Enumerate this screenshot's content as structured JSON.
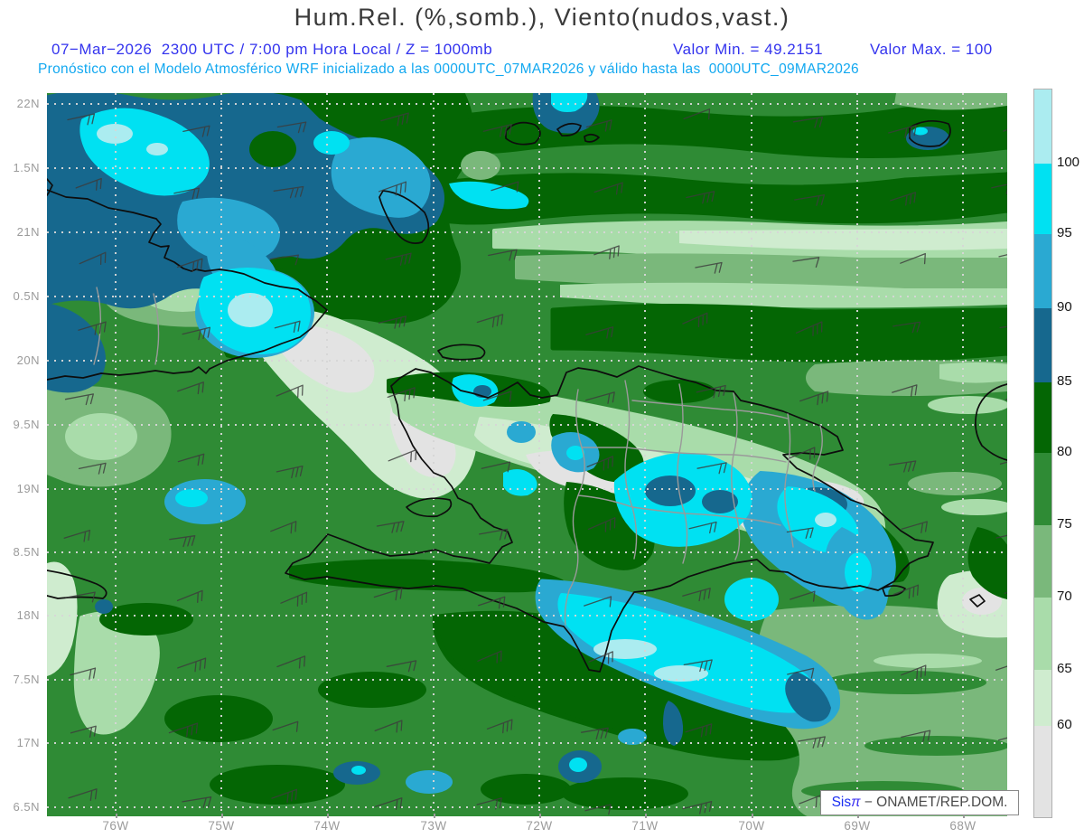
{
  "header": {
    "title": "Hum.Rel. (%,somb.), Viento(nudos,vast.)",
    "line2_left": "07−Mar−2026  2300 UTC / 7:00 pm Hora Local / Z = 1000mb",
    "valor_min": "Valor Min. = 49.2151",
    "valor_max": "Valor Max. = 100",
    "line3": "Pronóstico con el Modelo Atmosférico WRF inicializado a las 0000UTC_07MAR2026 y válido hasta las  0000UTC_09MAR2026",
    "title_color": "#3a3a3a",
    "line2_color": "#3434ee",
    "line3_color": "#12a8f0"
  },
  "map": {
    "lat_labels": [
      "22N",
      "1.5N",
      "21N",
      "0.5N",
      "20N",
      "9.5N",
      "19N",
      "8.5N",
      "18N",
      "7.5N",
      "17N",
      "6.5N"
    ],
    "lon_labels": [
      "76W",
      "75W",
      "74W",
      "73W",
      "72W",
      "71W",
      "70W",
      "69W",
      "68W"
    ],
    "label_color": "#9b9b9b",
    "region": "Hispaniola / Cuba / Caribbean",
    "field": "Relative humidity (%) shaded with wind barbs (knots)"
  },
  "colorbar": {
    "labels": [
      "100",
      "95",
      "90",
      "85",
      "80",
      "75",
      "70",
      "65",
      "60"
    ],
    "segments": [
      {
        "range": "above 100",
        "color": "#abecf0"
      },
      {
        "range": "95-100",
        "color": "#00e1f2"
      },
      {
        "range": "90-95",
        "color": "#2aa9d2"
      },
      {
        "range": "85-90",
        "color": "#16688e"
      },
      {
        "range": "80-85",
        "color": "#046604"
      },
      {
        "range": "75-80",
        "color": "#2f8b35"
      },
      {
        "range": "70-75",
        "color": "#7ab87b"
      },
      {
        "range": "65-70",
        "color": "#a9dcaa"
      },
      {
        "range": "60-65",
        "color": "#cfeccf"
      },
      {
        "range": "below 60",
        "color": "#e3e3e3"
      }
    ]
  },
  "wind": {
    "symbol": "wind-barb",
    "direction": "ENE (easterly trades)",
    "speed_range_kt": "10-25",
    "cols": 10,
    "rows": 11
  },
  "credit": {
    "brand": "Sis",
    "pi": "π",
    "org": " − ONAMET/REP.DOM."
  }
}
